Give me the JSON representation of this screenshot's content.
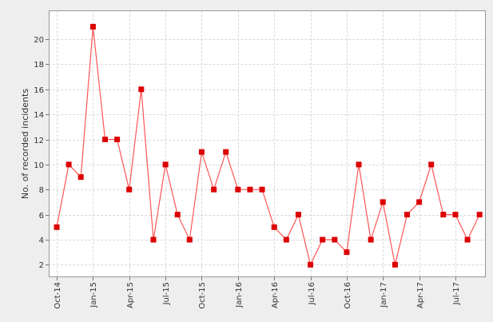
{
  "chart_data": {
    "type": "line",
    "title": "",
    "xlabel": "",
    "ylabel": "No. of recorded incidents",
    "ylim": [
      1,
      22.3
    ],
    "yticks": [
      2,
      4,
      6,
      8,
      10,
      12,
      14,
      16,
      18,
      20
    ],
    "grid": true,
    "legend": "none",
    "colors": {
      "line": "#ff5555",
      "marker": "#dd0000",
      "plot_bg": "#ffffff",
      "frame": "#999999"
    },
    "x_tick_labels": [
      "Oct-14",
      "Jan-15",
      "Apr-15",
      "Jul-15",
      "Oct-15",
      "Jan-16",
      "Apr-16",
      "Jul-16",
      "Oct-16",
      "Jan-17",
      "Apr-17",
      "Jul-17"
    ],
    "series": [
      {
        "x": [
          "2014-10",
          "2014-11",
          "2014-12",
          "2015-01",
          "2015-02",
          "2015-03",
          "2015-04",
          "2015-05",
          "2015-06",
          "2015-07",
          "2015-08",
          "2015-09",
          "2015-10",
          "2015-11",
          "2015-12",
          "2016-01",
          "2016-02",
          "2016-03",
          "2016-04",
          "2016-05",
          "2016-06",
          "2016-07",
          "2016-08",
          "2016-09",
          "2016-10",
          "2016-11",
          "2016-12",
          "2017-01",
          "2017-02",
          "2017-03",
          "2017-04",
          "2017-05",
          "2017-06",
          "2017-07",
          "2017-08",
          "2017-09"
        ],
        "values": [
          5,
          10,
          9,
          21,
          12,
          12,
          8,
          16,
          4,
          10,
          6,
          4,
          11,
          8,
          11,
          8,
          8,
          8,
          5,
          4,
          6,
          2,
          4,
          4,
          3,
          10,
          4,
          7,
          2,
          6,
          7,
          10,
          6,
          6,
          4,
          6
        ]
      }
    ]
  }
}
